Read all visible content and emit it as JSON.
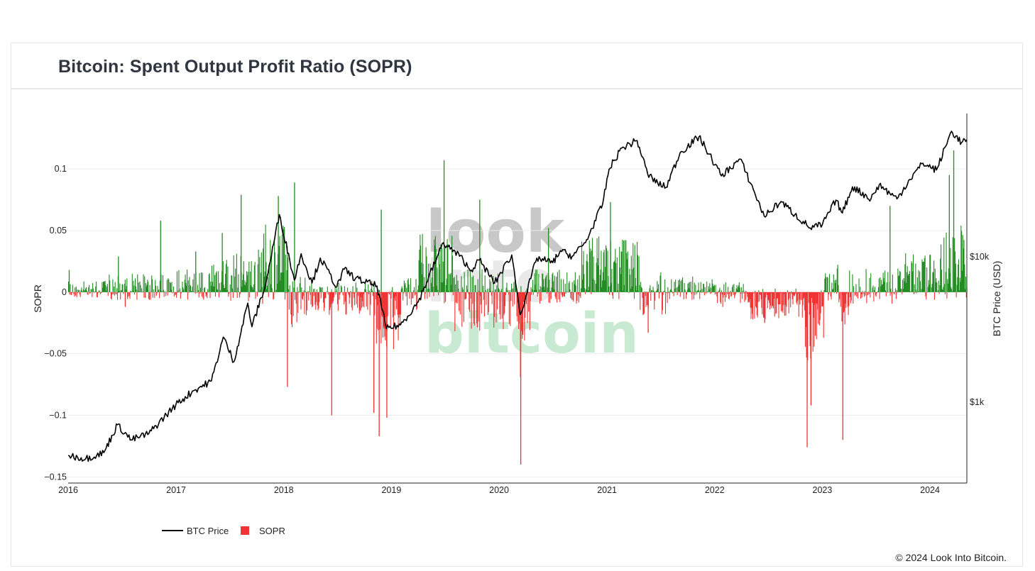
{
  "page": {
    "title": "Bitcoin: Spent Output Profit Ratio (SOPR)",
    "copyright": "© 2024 Look Into Bitcoin."
  },
  "watermark": {
    "line1": "look",
    "line2": "into",
    "line3": "bitcoin"
  },
  "colors": {
    "positive": "#228b22",
    "negative": "#f03232",
    "price": "#000000",
    "grid": "#ececec"
  },
  "chart_data": {
    "type": "bar",
    "title": "Bitcoin: Spent Output Profit Ratio (SOPR)",
    "ylabel": "SOPR",
    "y2label": "BTC Price (USD)",
    "ylim": [
      -0.155,
      0.145
    ],
    "y2_scale": "log",
    "y_ticks": [
      0.1,
      0.05,
      0,
      -0.05,
      -0.1,
      -0.15
    ],
    "y_tick_labels": [
      "0.1",
      "0.05",
      "0",
      "−0.05",
      "−0.1",
      "−0.15"
    ],
    "y2_ticks": [
      1000,
      10000
    ],
    "y2_tick_labels": [
      "$1k",
      "$10k"
    ],
    "x_ticks": [
      "2016",
      "2017",
      "2018",
      "2019",
      "2020",
      "2021",
      "2022",
      "2023",
      "2024"
    ],
    "xlim": [
      "2016-01-01",
      "2024-05-05"
    ],
    "grid": true,
    "legend": {
      "position": "bottom-left",
      "items": [
        "BTC Price",
        "SOPR"
      ]
    },
    "series": [
      {
        "name": "SOPR",
        "kind": "bar",
        "spikes": [
          [
            "2016-01-03",
            0.018
          ],
          [
            "2016-06-18",
            0.029
          ],
          [
            "2016-07-11",
            -0.012
          ],
          [
            "2016-11-08",
            0.058
          ],
          [
            "2017-03-07",
            0.033
          ],
          [
            "2017-06-05",
            0.048
          ],
          [
            "2017-08-08",
            0.079
          ],
          [
            "2017-12-12",
            0.078
          ],
          [
            "2018-01-12",
            -0.077
          ],
          [
            "2018-02-05",
            0.089
          ],
          [
            "2018-06-11",
            -0.1
          ],
          [
            "2018-11-01",
            -0.098
          ],
          [
            "2018-11-19",
            -0.117
          ],
          [
            "2018-11-26",
            0.067
          ],
          [
            "2018-12-15",
            -0.102
          ],
          [
            "2019-06-27",
            0.107
          ],
          [
            "2019-10-26",
            0.075
          ],
          [
            "2020-03-13",
            -0.14
          ],
          [
            "2020-03-12",
            -0.069
          ],
          [
            "2020-06-15",
            0.052
          ],
          [
            "2021-01-11",
            0.073
          ],
          [
            "2021-05-19",
            -0.033
          ],
          [
            "2022-06-18",
            -0.025
          ],
          [
            "2022-11-09",
            -0.126
          ],
          [
            "2022-11-22",
            -0.092
          ],
          [
            "2023-03-10",
            -0.12
          ],
          [
            "2023-08-17",
            0.07
          ],
          [
            "2024-03-05",
            0.095
          ],
          [
            "2024-03-20",
            0.115
          ]
        ]
      },
      {
        "name": "BTC Price",
        "kind": "line",
        "points": [
          [
            "2016-01-01",
            430
          ],
          [
            "2016-03-01",
            410
          ],
          [
            "2016-05-01",
            450
          ],
          [
            "2016-06-16",
            700
          ],
          [
            "2016-08-02",
            550
          ],
          [
            "2016-10-01",
            610
          ],
          [
            "2016-12-31",
            960
          ],
          [
            "2017-03-01",
            1200
          ],
          [
            "2017-05-01",
            1400
          ],
          [
            "2017-06-10",
            2800
          ],
          [
            "2017-07-16",
            1900
          ],
          [
            "2017-09-01",
            4800
          ],
          [
            "2017-09-15",
            3300
          ],
          [
            "2017-11-01",
            6500
          ],
          [
            "2017-12-17",
            19500
          ],
          [
            "2018-02-06",
            6900
          ],
          [
            "2018-03-01",
            10500
          ],
          [
            "2018-04-07",
            6600
          ],
          [
            "2018-05-05",
            9800
          ],
          [
            "2018-06-30",
            6200
          ],
          [
            "2018-07-25",
            8200
          ],
          [
            "2018-09-01",
            7100
          ],
          [
            "2018-11-13",
            6300
          ],
          [
            "2018-12-15",
            3200
          ],
          [
            "2019-02-01",
            3400
          ],
          [
            "2019-04-02",
            4900
          ],
          [
            "2019-06-26",
            12500
          ],
          [
            "2019-09-01",
            9600
          ],
          [
            "2019-09-25",
            8000
          ],
          [
            "2019-10-26",
            9500
          ],
          [
            "2019-12-17",
            6600
          ],
          [
            "2020-02-13",
            10300
          ],
          [
            "2020-03-13",
            4000
          ],
          [
            "2020-05-08",
            9800
          ],
          [
            "2020-07-01",
            9100
          ],
          [
            "2020-07-27",
            11000
          ],
          [
            "2020-09-05",
            10100
          ],
          [
            "2020-10-20",
            12500
          ],
          [
            "2020-12-17",
            23000
          ],
          [
            "2021-01-08",
            40000
          ],
          [
            "2021-02-20",
            56000
          ],
          [
            "2021-04-13",
            63000
          ],
          [
            "2021-05-19",
            37000
          ],
          [
            "2021-06-22",
            32000
          ],
          [
            "2021-07-20",
            30000
          ],
          [
            "2021-09-06",
            52000
          ],
          [
            "2021-11-09",
            67000
          ],
          [
            "2022-01-24",
            36000
          ],
          [
            "2022-03-28",
            47000
          ],
          [
            "2022-05-12",
            29000
          ],
          [
            "2022-06-18",
            19000
          ],
          [
            "2022-08-14",
            24000
          ],
          [
            "2022-09-30",
            19500
          ],
          [
            "2022-11-21",
            15800
          ],
          [
            "2023-01-01",
            16600
          ],
          [
            "2023-02-16",
            24500
          ],
          [
            "2023-03-10",
            20000
          ],
          [
            "2023-04-13",
            30300
          ],
          [
            "2023-06-15",
            25000
          ],
          [
            "2023-07-13",
            31300
          ],
          [
            "2023-09-11",
            25000
          ],
          [
            "2023-10-24",
            34000
          ],
          [
            "2023-12-08",
            44000
          ],
          [
            "2024-01-23",
            39500
          ],
          [
            "2024-03-14",
            73000
          ],
          [
            "2024-04-17",
            61000
          ],
          [
            "2024-05-05",
            64000
          ]
        ]
      }
    ]
  }
}
